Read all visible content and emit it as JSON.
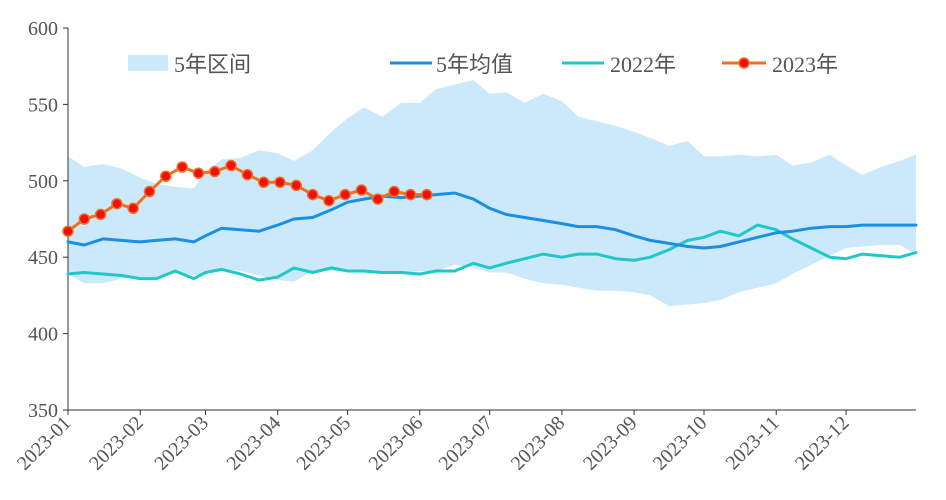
{
  "chart_data": {
    "type": "line",
    "title": "",
    "xlabel": "",
    "ylabel": "",
    "ylim": [
      350,
      600
    ],
    "yticks": [
      350,
      400,
      450,
      500,
      550,
      600
    ],
    "x_range": [
      "2023-01",
      "2023-12-31"
    ],
    "xticks": [
      "2023-01",
      "2023-02",
      "2023-03",
      "2023-04",
      "2023-05",
      "2023-06",
      "2023-07",
      "2023-08",
      "2023-09",
      "2023-10",
      "2023-11",
      "2023-12"
    ],
    "legend": {
      "placement": "top",
      "items": [
        "5年区间",
        "5年均值",
        "2022年",
        "2023年"
      ]
    },
    "colors": {
      "band": "#cce9fb",
      "avg": "#1a8fe3",
      "y2022": "#22c7c7",
      "y2023_line": "#f07020",
      "y2023_marker": "#ee1111",
      "axis": "#333333",
      "text": "#555555"
    },
    "range_band": {
      "name": "5年区间",
      "x": [
        "2023-01-01",
        "2023-01-08",
        "2023-01-16",
        "2023-01-24",
        "2023-02-01",
        "2023-02-08",
        "2023-02-16",
        "2023-02-24",
        "2023-03-01",
        "2023-03-08",
        "2023-03-16",
        "2023-03-24",
        "2023-04-01",
        "2023-04-08",
        "2023-04-16",
        "2023-04-24",
        "2023-05-01",
        "2023-05-08",
        "2023-05-16",
        "2023-05-24",
        "2023-06-01",
        "2023-06-08",
        "2023-06-16",
        "2023-06-24",
        "2023-07-01",
        "2023-07-08",
        "2023-07-16",
        "2023-07-24",
        "2023-08-01",
        "2023-08-08",
        "2023-08-16",
        "2023-08-24",
        "2023-09-01",
        "2023-09-08",
        "2023-09-16",
        "2023-09-24",
        "2023-10-01",
        "2023-10-08",
        "2023-10-16",
        "2023-10-24",
        "2023-11-01",
        "2023-11-08",
        "2023-11-16",
        "2023-11-24",
        "2023-12-01",
        "2023-12-08",
        "2023-12-16",
        "2023-12-24",
        "2023-12-31"
      ],
      "upper": [
        516,
        509,
        511,
        508,
        502,
        498,
        496,
        495,
        506,
        514,
        515,
        520,
        518,
        513,
        520,
        532,
        541,
        548,
        542,
        551,
        551,
        560,
        563,
        566,
        557,
        558,
        551,
        557,
        552,
        542,
        539,
        536,
        532,
        528,
        523,
        526,
        516,
        516,
        517,
        516,
        517,
        510,
        512,
        517,
        510,
        504,
        509,
        513,
        517
      ],
      "lower": [
        439,
        433,
        433,
        436,
        437,
        437,
        440,
        438,
        440,
        442,
        441,
        438,
        435,
        434,
        441,
        441,
        441,
        440,
        441,
        440,
        441,
        441,
        445,
        443,
        440,
        440,
        436,
        433,
        432,
        430,
        428,
        428,
        427,
        425,
        418,
        419,
        420,
        422,
        427,
        430,
        433,
        439,
        445,
        451,
        456,
        457,
        458,
        458,
        452
      ]
    },
    "series": [
      {
        "name": "5年均值",
        "x": [
          "2023-01-01",
          "2023-01-08",
          "2023-01-16",
          "2023-01-24",
          "2023-02-01",
          "2023-02-08",
          "2023-02-16",
          "2023-02-24",
          "2023-03-01",
          "2023-03-08",
          "2023-03-16",
          "2023-03-24",
          "2023-04-01",
          "2023-04-08",
          "2023-04-16",
          "2023-04-24",
          "2023-05-01",
          "2023-05-08",
          "2023-05-16",
          "2023-05-24",
          "2023-06-01",
          "2023-06-08",
          "2023-06-16",
          "2023-06-24",
          "2023-07-01",
          "2023-07-08",
          "2023-07-16",
          "2023-07-24",
          "2023-08-01",
          "2023-08-08",
          "2023-08-16",
          "2023-08-24",
          "2023-09-01",
          "2023-09-08",
          "2023-09-16",
          "2023-09-24",
          "2023-10-01",
          "2023-10-08",
          "2023-10-16",
          "2023-10-24",
          "2023-11-01",
          "2023-11-08",
          "2023-11-16",
          "2023-11-24",
          "2023-12-01",
          "2023-12-08",
          "2023-12-16",
          "2023-12-24",
          "2023-12-31"
        ],
        "values": [
          460,
          458,
          462,
          461,
          460,
          461,
          462,
          460,
          464,
          469,
          468,
          467,
          471,
          475,
          476,
          481,
          486,
          488,
          490,
          489,
          490,
          491,
          492,
          488,
          482,
          478,
          476,
          474,
          472,
          470,
          470,
          468,
          464,
          461,
          459,
          457,
          456,
          457,
          460,
          463,
          466,
          467,
          469,
          470,
          470,
          471,
          471,
          471,
          471
        ]
      },
      {
        "name": "2022年",
        "x": [
          "2023-01-01",
          "2023-01-08",
          "2023-01-16",
          "2023-01-24",
          "2023-02-01",
          "2023-02-08",
          "2023-02-16",
          "2023-02-24",
          "2023-03-01",
          "2023-03-08",
          "2023-03-16",
          "2023-03-24",
          "2023-04-01",
          "2023-04-08",
          "2023-04-16",
          "2023-04-24",
          "2023-05-01",
          "2023-05-08",
          "2023-05-16",
          "2023-05-24",
          "2023-06-01",
          "2023-06-08",
          "2023-06-16",
          "2023-06-24",
          "2023-07-01",
          "2023-07-08",
          "2023-07-16",
          "2023-07-24",
          "2023-08-01",
          "2023-08-08",
          "2023-08-16",
          "2023-08-24",
          "2023-09-01",
          "2023-09-08",
          "2023-09-16",
          "2023-09-24",
          "2023-10-01",
          "2023-10-08",
          "2023-10-16",
          "2023-10-24",
          "2023-11-01",
          "2023-11-08",
          "2023-11-16",
          "2023-11-24",
          "2023-12-01",
          "2023-12-08",
          "2023-12-16",
          "2023-12-24",
          "2023-12-31"
        ],
        "values": [
          439,
          440,
          439,
          438,
          436,
          436,
          441,
          436,
          440,
          442,
          439,
          435,
          437,
          443,
          440,
          443,
          441,
          441,
          440,
          440,
          439,
          441,
          441,
          446,
          443,
          446,
          449,
          452,
          450,
          452,
          452,
          449,
          448,
          450,
          455,
          461,
          463,
          467,
          464,
          471,
          468,
          462,
          456,
          450,
          449,
          452,
          451,
          450,
          453
        ]
      },
      {
        "name": "2023年",
        "x": [
          "2023-01-01",
          "2023-01-08",
          "2023-01-15",
          "2023-01-22",
          "2023-01-29",
          "2023-02-05",
          "2023-02-12",
          "2023-02-19",
          "2023-02-26",
          "2023-03-05",
          "2023-03-12",
          "2023-03-19",
          "2023-03-26",
          "2023-04-02",
          "2023-04-09",
          "2023-04-16",
          "2023-04-23",
          "2023-04-30",
          "2023-05-07",
          "2023-05-14",
          "2023-05-21",
          "2023-05-28",
          "2023-06-04"
        ],
        "values": [
          467,
          475,
          478,
          485,
          482,
          493,
          503,
          509,
          505,
          506,
          510,
          504,
          499,
          499,
          497,
          491,
          487,
          491,
          494,
          488,
          493,
          491,
          491
        ]
      }
    ]
  }
}
